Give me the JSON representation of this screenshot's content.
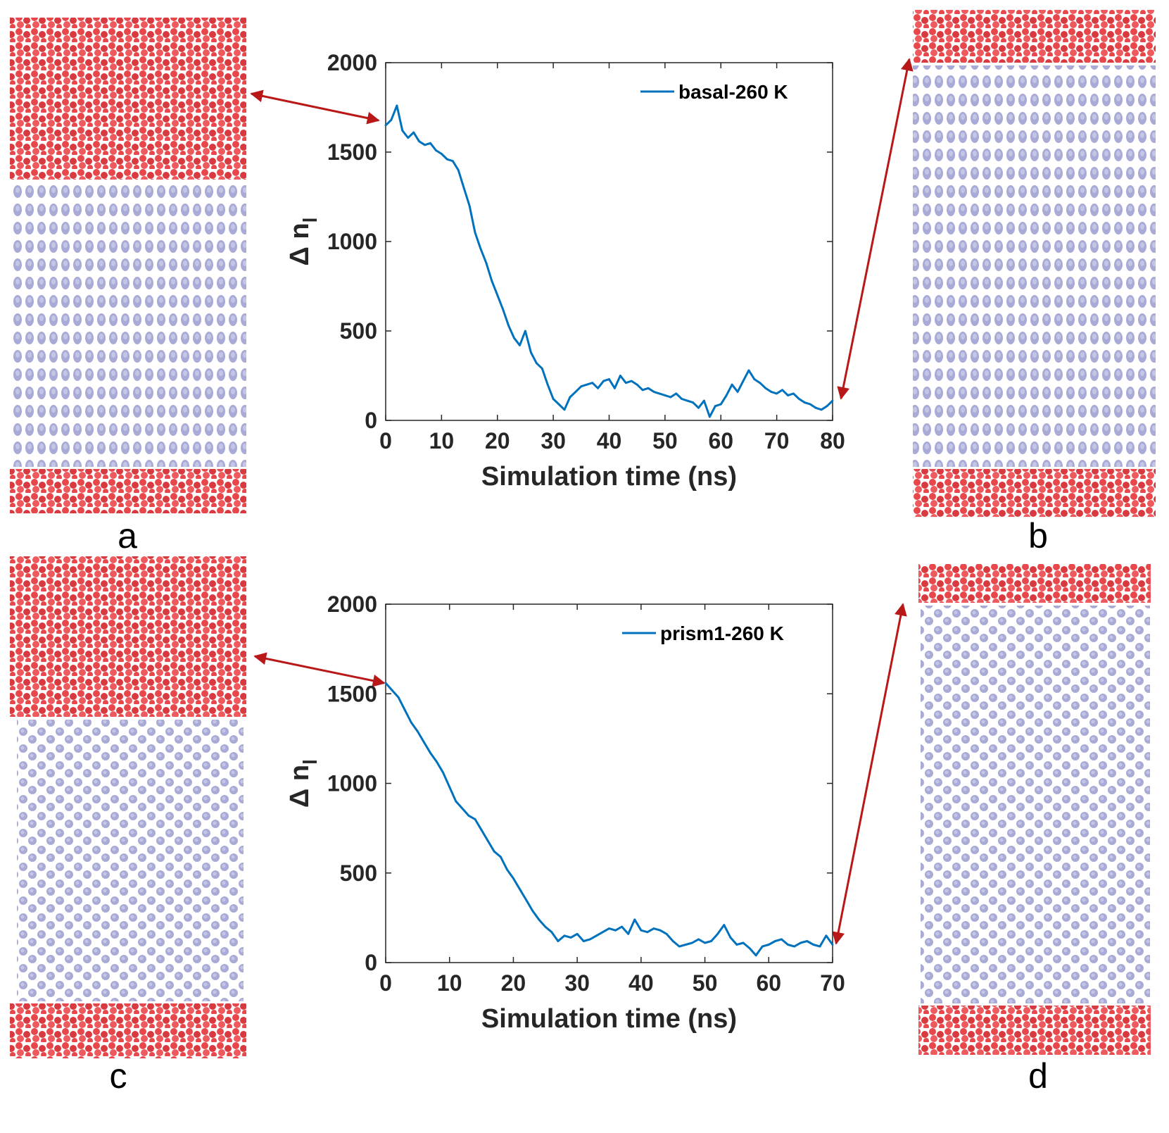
{
  "colors": {
    "line": "#0072BD",
    "arrow": "#B81818",
    "liquid": "#E8474B",
    "ice": "#A9ABD6",
    "axis": "#262626"
  },
  "panels": {
    "a": "a",
    "b": "b",
    "c": "c",
    "d": "d"
  },
  "chart_data": [
    {
      "type": "line",
      "title": "",
      "xlabel": "Simulation time (ns)",
      "ylabel": "Δ n_l",
      "ylabel_main": "Δ n",
      "ylabel_sub": "l",
      "xlim": [
        0,
        80
      ],
      "ylim": [
        0,
        2000
      ],
      "xticks": [
        0,
        10,
        20,
        30,
        40,
        50,
        60,
        70,
        80
      ],
      "yticks": [
        0,
        500,
        1000,
        1500,
        2000
      ],
      "legend": "top-right",
      "series": [
        {
          "name": "basal-260 K",
          "x": [
            0,
            1,
            2,
            3,
            4,
            5,
            6,
            7,
            8,
            9,
            10,
            11,
            12,
            13,
            14,
            15,
            16,
            17,
            18,
            19,
            20,
            21,
            22,
            23,
            24,
            25,
            26,
            27,
            28,
            29,
            30,
            31,
            32,
            33,
            34,
            35,
            36,
            37,
            38,
            39,
            40,
            41,
            42,
            43,
            44,
            45,
            46,
            47,
            48,
            49,
            50,
            51,
            52,
            53,
            54,
            55,
            56,
            57,
            58,
            59,
            60,
            61,
            62,
            63,
            64,
            65,
            66,
            67,
            68,
            69,
            70,
            71,
            72,
            73,
            74,
            75,
            76,
            77,
            78,
            79,
            80
          ],
          "values": [
            1650,
            1680,
            1760,
            1620,
            1580,
            1610,
            1560,
            1540,
            1550,
            1510,
            1490,
            1460,
            1450,
            1400,
            1300,
            1200,
            1050,
            960,
            880,
            780,
            700,
            620,
            530,
            460,
            420,
            500,
            380,
            320,
            290,
            200,
            120,
            90,
            60,
            130,
            160,
            190,
            200,
            210,
            180,
            220,
            230,
            180,
            250,
            210,
            220,
            200,
            170,
            180,
            160,
            150,
            140,
            130,
            150,
            120,
            110,
            100,
            70,
            110,
            20,
            80,
            90,
            140,
            200,
            160,
            220,
            280,
            230,
            210,
            180,
            160,
            150,
            170,
            140,
            150,
            120,
            100,
            90,
            70,
            60,
            80,
            110
          ]
        }
      ]
    },
    {
      "type": "line",
      "title": "",
      "xlabel": "Simulation time (ns)",
      "ylabel": "Δ n_l",
      "ylabel_main": "Δ n",
      "ylabel_sub": "l",
      "xlim": [
        0,
        70
      ],
      "ylim": [
        0,
        2000
      ],
      "xticks": [
        0,
        10,
        20,
        30,
        40,
        50,
        60,
        70
      ],
      "yticks": [
        0,
        500,
        1000,
        1500,
        2000
      ],
      "legend": "top-right",
      "series": [
        {
          "name": "prism1-260 K",
          "x": [
            0,
            1,
            2,
            3,
            4,
            5,
            6,
            7,
            8,
            9,
            10,
            11,
            12,
            13,
            14,
            15,
            16,
            17,
            18,
            19,
            20,
            21,
            22,
            23,
            24,
            25,
            26,
            27,
            28,
            29,
            30,
            31,
            32,
            33,
            34,
            35,
            36,
            37,
            38,
            39,
            40,
            41,
            42,
            43,
            44,
            45,
            46,
            47,
            48,
            49,
            50,
            51,
            52,
            53,
            54,
            55,
            56,
            57,
            58,
            59,
            60,
            61,
            62,
            63,
            64,
            65,
            66,
            67,
            68,
            69,
            70
          ],
          "values": [
            1560,
            1520,
            1480,
            1410,
            1340,
            1290,
            1230,
            1170,
            1120,
            1060,
            980,
            900,
            860,
            820,
            800,
            740,
            680,
            620,
            590,
            520,
            470,
            410,
            350,
            290,
            240,
            200,
            170,
            120,
            150,
            140,
            160,
            120,
            130,
            150,
            170,
            190,
            180,
            200,
            160,
            240,
            180,
            170,
            190,
            180,
            160,
            120,
            90,
            100,
            110,
            130,
            110,
            120,
            160,
            210,
            140,
            100,
            110,
            80,
            40,
            90,
            100,
            120,
            130,
            100,
            90,
            110,
            120,
            100,
            90,
            150,
            100
          ]
        }
      ]
    }
  ]
}
